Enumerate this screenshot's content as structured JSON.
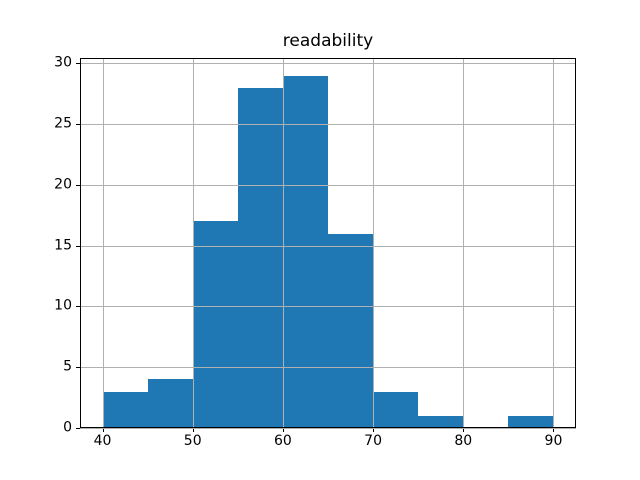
{
  "chart_data": {
    "type": "bar",
    "subtype": "histogram",
    "title": "readability",
    "xlabel": "",
    "ylabel": "",
    "bin_edges": [
      40,
      45,
      50,
      55,
      60,
      65,
      70,
      75,
      80,
      85,
      90
    ],
    "counts": [
      3,
      4,
      17,
      28,
      29,
      16,
      3,
      1,
      0,
      1
    ],
    "x_ticks": [
      40,
      50,
      60,
      70,
      80,
      90
    ],
    "y_ticks": [
      0,
      5,
      10,
      15,
      20,
      25,
      30
    ],
    "xlim": [
      37.5,
      92.5
    ],
    "ylim": [
      0,
      30.45
    ],
    "grid": "on",
    "legend": "none",
    "bar_color": "#1f77b4",
    "grid_color": "#b0b0b0",
    "spine_color": "#000000",
    "text_color": "#000000",
    "background_color": "#ffffff"
  }
}
